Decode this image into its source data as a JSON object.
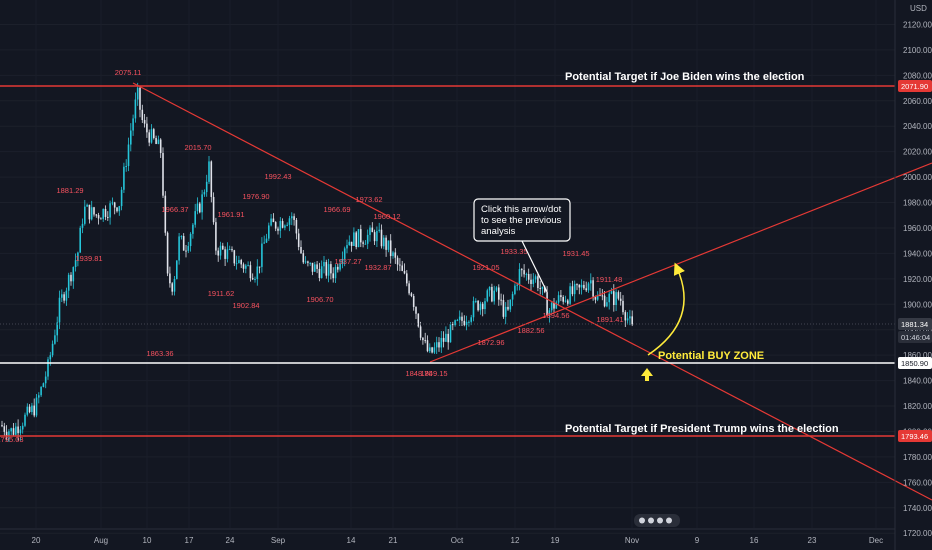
{
  "chart_data": {
    "type": "candlestick",
    "currency": "USD",
    "y_ticks": [
      1720,
      1740,
      1760,
      1780,
      1800,
      1820,
      1840,
      1860,
      1880,
      1900,
      1920,
      1940,
      1960,
      1980,
      2000,
      2020,
      2040,
      2060,
      2080,
      2100,
      2120
    ],
    "ylim": [
      1715,
      2135
    ],
    "x_ticks": [
      "20",
      "Aug",
      "10",
      "17",
      "24",
      "Sep",
      "14",
      "21",
      "Oct",
      "12",
      "19",
      "Nov",
      "9",
      "16",
      "23",
      "Dec"
    ],
    "price_tags": {
      "biden_target": "2071.90",
      "last_price": "1881.34",
      "countdown": "01:46:04",
      "support": "1850.90",
      "trump_target": "1793.46"
    },
    "peak_labels": [
      "2075.11",
      "2015.70",
      "1992.43",
      "1976.90",
      "1973.62",
      "1966.69",
      "1966.37",
      "1961.91",
      "1960.12",
      "1939.81",
      "1937.27",
      "1932.87",
      "1933.35",
      "1931.45",
      "1921.05",
      "1911.48",
      "1911.62",
      "1906.70",
      "1902.84",
      "1894.56",
      "1891.41",
      "1881.29",
      "1882.56",
      "1872.96",
      "1863.36",
      "1849.15",
      "1848.70",
      "1795.03"
    ],
    "annotations": {
      "biden": "Potential Target if Joe Biden wins the election",
      "trump": "Potential Target if President Trump wins the election",
      "buy_zone": "Potential BUY ZONE",
      "note": [
        "Click this arrow/dot",
        "to see the previous",
        "analysis"
      ]
    },
    "series_approx": [
      {
        "date": "Jul 14",
        "price": 1805
      },
      {
        "date": "Jul 16",
        "price": 1800
      },
      {
        "date": "Jul 20",
        "price": 1820
      },
      {
        "date": "Jul 22",
        "price": 1850
      },
      {
        "date": "Jul 24",
        "price": 1900
      },
      {
        "date": "Jul 27",
        "price": 1940
      },
      {
        "date": "Jul 28",
        "price": 1975
      },
      {
        "date": "Jul 30",
        "price": 1970
      },
      {
        "date": "Aug 3",
        "price": 1980
      },
      {
        "date": "Aug 5",
        "price": 2040
      },
      {
        "date": "Aug 6",
        "price": 2065
      },
      {
        "date": "Aug 7",
        "price": 2040
      },
      {
        "date": "Aug 10",
        "price": 2020
      },
      {
        "date": "Aug 11",
        "price": 1920
      },
      {
        "date": "Aug 12",
        "price": 1915
      },
      {
        "date": "Aug 13",
        "price": 1950
      },
      {
        "date": "Aug 14",
        "price": 1945
      },
      {
        "date": "Aug 17",
        "price": 1985
      },
      {
        "date": "Aug 18",
        "price": 2010
      },
      {
        "date": "Aug 19",
        "price": 1945
      },
      {
        "date": "Aug 21",
        "price": 1940
      },
      {
        "date": "Aug 24",
        "price": 1930
      },
      {
        "date": "Aug 26",
        "price": 1925
      },
      {
        "date": "Aug 28",
        "price": 1960
      },
      {
        "date": "Sep 1",
        "price": 1970
      },
      {
        "date": "Sep 3",
        "price": 1930
      },
      {
        "date": "Sep 8",
        "price": 1925
      },
      {
        "date": "Sep 10",
        "price": 1950
      },
      {
        "date": "Sep 15",
        "price": 1955
      },
      {
        "date": "Sep 17",
        "price": 1945
      },
      {
        "date": "Sep 21",
        "price": 1910
      },
      {
        "date": "Sep 23",
        "price": 1870
      },
      {
        "date": "Sep 24",
        "price": 1860
      },
      {
        "date": "Sep 25",
        "price": 1865
      },
      {
        "date": "Sep 28",
        "price": 1880
      },
      {
        "date": "Oct 2",
        "price": 1900
      },
      {
        "date": "Oct 5",
        "price": 1910
      },
      {
        "date": "Oct 7",
        "price": 1890
      },
      {
        "date": "Oct 9",
        "price": 1925
      },
      {
        "date": "Oct 12",
        "price": 1920
      },
      {
        "date": "Oct 14",
        "price": 1895
      },
      {
        "date": "Oct 16",
        "price": 1905
      },
      {
        "date": "Oct 19",
        "price": 1910
      },
      {
        "date": "Oct 21",
        "price": 1920
      },
      {
        "date": "Oct 22",
        "price": 1905
      },
      {
        "date": "Oct 26",
        "price": 1905
      },
      {
        "date": "Oct 28",
        "price": 1880
      },
      {
        "date": "Oct 30",
        "price": 1878
      },
      {
        "date": "Nov 2",
        "price": 1881
      }
    ]
  }
}
